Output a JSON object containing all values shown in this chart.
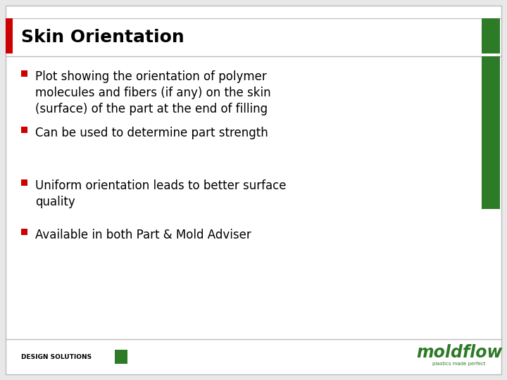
{
  "title": "Skin Orientation",
  "bullet_points": [
    "Plot showing the orientation of polymer\nmolecules and fibers (if any) on the skin\n(surface) of the part at the end of filling",
    "Can be used to determine part strength",
    "Uniform orientation leads to better surface\nquality",
    "Available in both Part & Mold Adviser"
  ],
  "bullet_color": "#cc0000",
  "title_color": "#000000",
  "text_color": "#000000",
  "bg_color": "#e8e8e8",
  "slide_bg": "#ffffff",
  "green_color": "#2d7a27",
  "red_accent": "#cc0000",
  "footer_text": "DESIGN SOLUTIONS",
  "moldflow_text": "moldflow",
  "moldflow_subtext": "plastics made perfect",
  "border_color": "#bbbbbb",
  "title_fontsize": 18,
  "body_fontsize": 12,
  "footer_fontsize": 6.5
}
